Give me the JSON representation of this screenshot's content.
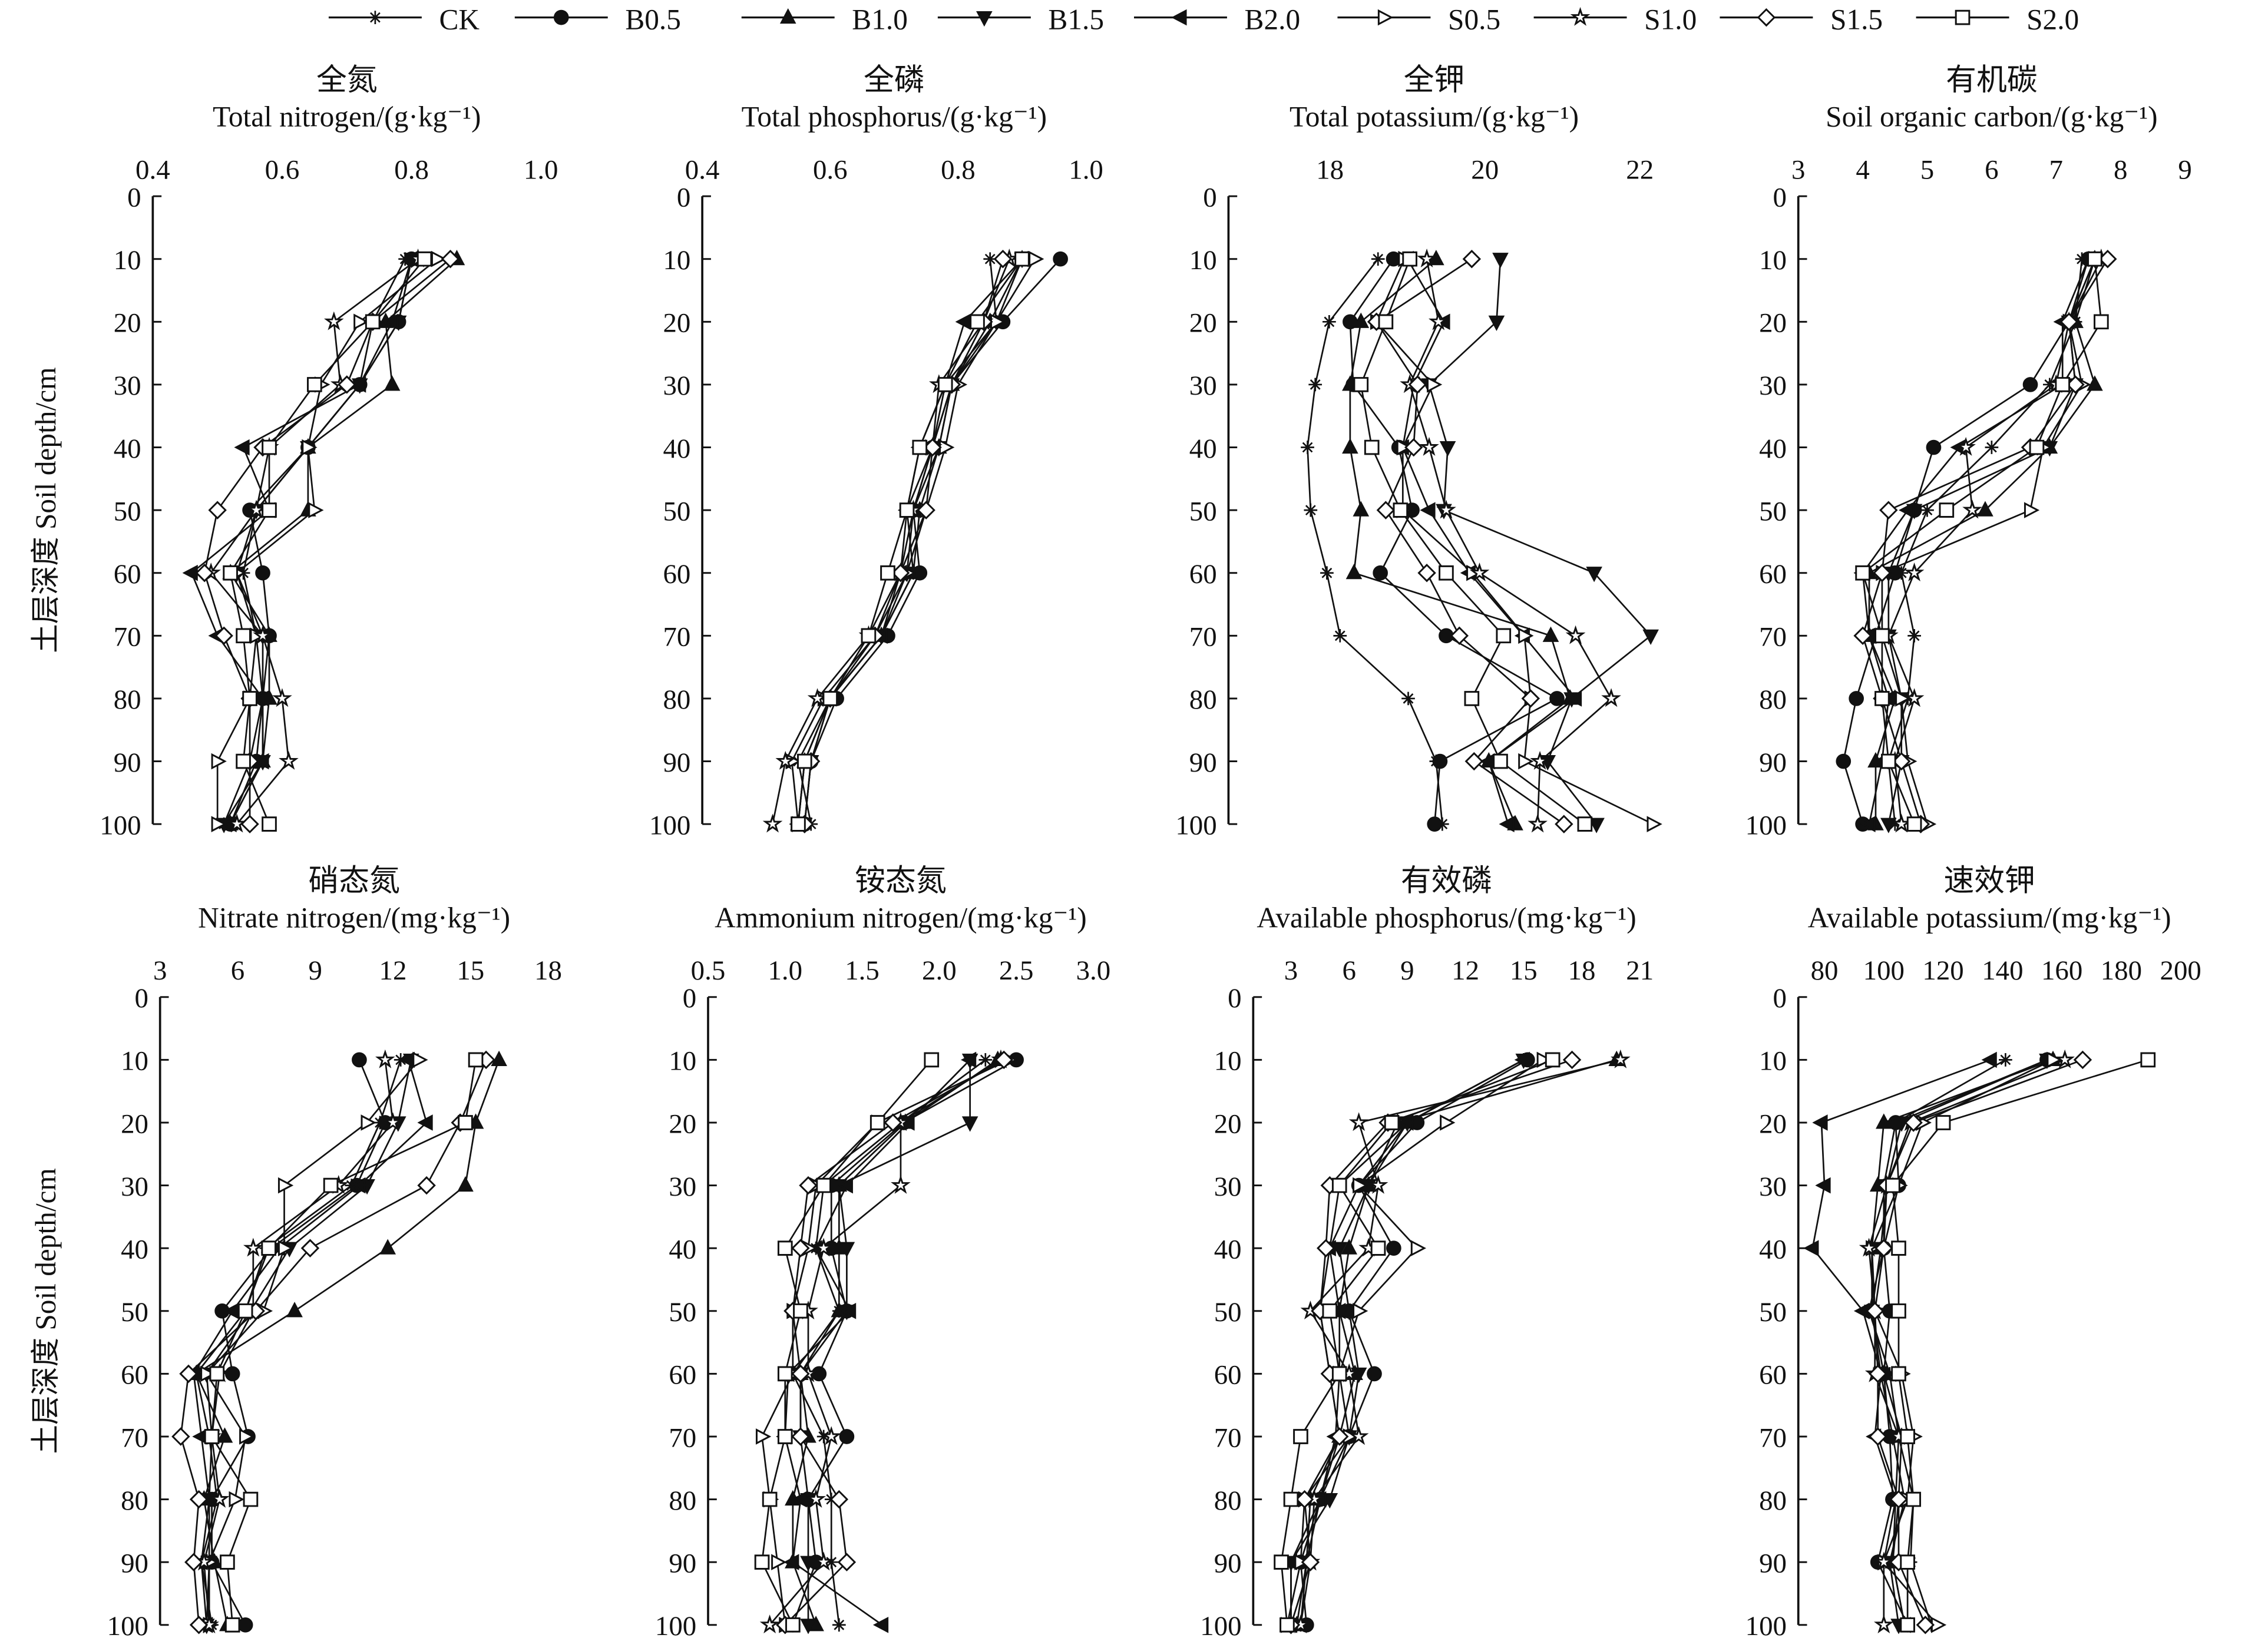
{
  "chart_data": {
    "type": "line",
    "y_label": "土层深度  Soil depth/cm",
    "depths": [
      10,
      20,
      30,
      40,
      50,
      60,
      70,
      80,
      90,
      100
    ],
    "y_ticks": [
      0,
      10,
      20,
      30,
      40,
      50,
      60,
      70,
      80,
      90,
      100
    ],
    "ylim": [
      0,
      100
    ],
    "series_names": [
      "CK",
      "B0.5",
      "B1.0",
      "B1.5",
      "B2.0",
      "S0.5",
      "S1.0",
      "S1.5",
      "S2.0"
    ],
    "markers": [
      "asterisk",
      "filled-circle",
      "filled-triangle-up",
      "filled-triangle-down",
      "filled-triangle-left",
      "open-triangle-right",
      "open-star",
      "open-diamond",
      "open-square"
    ],
    "color": "#111111",
    "legend_position": "top",
    "panels": [
      {
        "title_cn": "全氮",
        "title_en": "Total nitrogen/(g·kg⁻¹)",
        "xlim": [
          0.4,
          1.0
        ],
        "xticks": [
          "0.4",
          "0.6",
          "0.8",
          "1.0"
        ],
        "xtick_values": [
          0.4,
          0.6,
          0.8,
          1.0
        ],
        "values": [
          [
            0.79,
            0.74,
            0.72,
            0.64,
            0.56,
            0.54,
            0.56,
            0.57,
            0.55,
            0.51
          ],
          [
            0.8,
            0.78,
            0.72,
            0.64,
            0.55,
            0.57,
            0.58,
            0.57,
            0.56,
            0.52
          ],
          [
            0.87,
            0.76,
            0.77,
            0.64,
            0.64,
            0.52,
            0.58,
            0.58,
            0.57,
            0.52
          ],
          [
            0.8,
            0.78,
            0.72,
            0.64,
            0.56,
            0.53,
            0.57,
            0.57,
            0.57,
            0.51
          ],
          [
            0.8,
            0.77,
            0.72,
            0.54,
            0.58,
            0.46,
            0.5,
            0.57,
            0.57,
            0.52
          ],
          [
            0.84,
            0.72,
            0.66,
            0.64,
            0.65,
            0.53,
            0.56,
            0.55,
            0.5,
            0.5
          ],
          [
            0.81,
            0.68,
            0.69,
            0.58,
            0.56,
            0.49,
            0.57,
            0.6,
            0.61,
            0.53
          ],
          [
            0.86,
            0.74,
            0.7,
            0.57,
            0.5,
            0.48,
            0.51,
            0.55,
            0.55,
            0.55
          ],
          [
            0.82,
            0.74,
            0.65,
            0.58,
            0.58,
            0.52,
            0.54,
            0.55,
            0.54,
            0.58
          ]
        ]
      },
      {
        "title_cn": "全磷",
        "title_en": "Total phosphorus/(g·kg⁻¹)",
        "xlim": [
          0.4,
          1.0
        ],
        "xticks": [
          "0.4",
          "0.6",
          "0.8",
          "1.0"
        ],
        "xtick_values": [
          0.4,
          0.6,
          0.8,
          1.0
        ],
        "values": [
          [
            0.85,
            0.86,
            0.78,
            0.76,
            0.72,
            0.73,
            0.68,
            0.6,
            0.55,
            0.57
          ],
          [
            0.96,
            0.87,
            0.79,
            0.76,
            0.73,
            0.74,
            0.69,
            0.61,
            0.57,
            0.56
          ],
          [
            0.9,
            0.85,
            0.79,
            0.77,
            0.74,
            0.73,
            0.68,
            0.6,
            0.56,
            0.55
          ],
          [
            0.9,
            0.86,
            0.79,
            0.77,
            0.73,
            0.72,
            0.68,
            0.6,
            0.57,
            0.56
          ],
          [
            0.9,
            0.81,
            0.78,
            0.74,
            0.72,
            0.71,
            0.68,
            0.6,
            0.56,
            0.55
          ],
          [
            0.92,
            0.86,
            0.8,
            0.78,
            0.75,
            0.72,
            0.67,
            0.59,
            0.54,
            0.55
          ],
          [
            0.88,
            0.84,
            0.77,
            0.76,
            0.73,
            0.71,
            0.66,
            0.58,
            0.53,
            0.51
          ],
          [
            0.87,
            0.84,
            0.79,
            0.76,
            0.75,
            0.71,
            0.67,
            0.6,
            0.57,
            0.56
          ],
          [
            0.9,
            0.83,
            0.78,
            0.74,
            0.72,
            0.69,
            0.66,
            0.6,
            0.56,
            0.55
          ]
        ]
      },
      {
        "title_cn": "全钾",
        "title_en": "Total potassium/(g·kg⁻¹)",
        "xlim": [
          16.69,
          22.0
        ],
        "xticks": [
          "18",
          "20",
          "22"
        ],
        "xtick_values": [
          18,
          20,
          22
        ],
        "values": [
          [
            18.62,
            17.99,
            17.81,
            17.71,
            17.75,
            17.96,
            18.13,
            19.01,
            19.37,
            19.45
          ],
          [
            18.82,
            18.26,
            18.3,
            18.89,
            19.06,
            18.65,
            19.5,
            20.93,
            19.42,
            19.35
          ],
          [
            19.37,
            18.4,
            18.26,
            18.26,
            18.4,
            18.31,
            20.85,
            21.1,
            20.05,
            20.39
          ],
          [
            20.2,
            20.15,
            19.28,
            19.52,
            19.47,
            21.41,
            22.14,
            21.12,
            20.81,
            21.44
          ],
          [
            19.0,
            19.47,
            19.08,
            18.94,
            19.28,
            19.8,
            20.5,
            21.17,
            20.05,
            20.3
          ],
          [
            18.96,
            18.6,
            19.33,
            18.94,
            18.94,
            19.84,
            20.51,
            20.59,
            20.51,
            22.17
          ],
          [
            19.25,
            19.4,
            19.03,
            19.28,
            19.5,
            19.93,
            21.17,
            21.63,
            20.71,
            20.68
          ],
          [
            19.83,
            18.6,
            19.13,
            19.08,
            18.72,
            19.25,
            19.67,
            20.59,
            19.86,
            21.02
          ],
          [
            19.03,
            18.72,
            18.4,
            18.54,
            18.91,
            19.5,
            20.24,
            19.83,
            20.2,
            21.29
          ]
        ]
      },
      {
        "title_cn": "有机碳",
        "title_en": "Soil organic carbon/(g·kg⁻¹)",
        "xlim": [
          3,
          9
        ],
        "xticks": [
          "3",
          "4",
          "5",
          "6",
          "7",
          "8",
          "9"
        ],
        "xtick_values": [
          3,
          4,
          5,
          6,
          7,
          8,
          9
        ],
        "values": [
          [
            7.4,
            7.3,
            6.9,
            6.0,
            5.0,
            4.6,
            4.8,
            4.7,
            4.4,
            4.5
          ],
          [
            7.5,
            7.2,
            6.6,
            5.1,
            4.8,
            4.5,
            4.2,
            3.9,
            3.7,
            4.0
          ],
          [
            7.6,
            7.3,
            7.6,
            6.9,
            5.9,
            4.1,
            4.1,
            4.5,
            4.2,
            4.2
          ],
          [
            7.6,
            7.2,
            7.3,
            6.9,
            4.8,
            4.4,
            4.4,
            4.6,
            4.6,
            4.4
          ],
          [
            7.5,
            7.1,
            7.1,
            5.5,
            4.7,
            4.0,
            4.1,
            4.4,
            4.3,
            4.1
          ],
          [
            7.6,
            7.2,
            7.4,
            6.8,
            6.6,
            4.3,
            4.3,
            4.6,
            4.7,
            5.0
          ],
          [
            7.7,
            7.2,
            7.0,
            5.6,
            5.7,
            4.8,
            4.4,
            4.8,
            4.5,
            4.6
          ],
          [
            7.8,
            7.2,
            7.3,
            6.6,
            4.4,
            4.3,
            4.0,
            4.3,
            4.6,
            4.9
          ],
          [
            7.6,
            7.7,
            7.1,
            6.7,
            5.3,
            4.0,
            4.3,
            4.3,
            4.4,
            4.8
          ]
        ]
      },
      {
        "title_cn": "硝态氮",
        "title_en": "Nitrate nitrogen/(mg·kg⁻¹)",
        "xlim": [
          3,
          18
        ],
        "xticks": [
          "3",
          "6",
          "9",
          "12",
          "15",
          "18"
        ],
        "xtick_values": [
          3,
          6,
          9,
          12,
          15,
          18
        ],
        "values": [
          [
            12.3,
            11.5,
            10.4,
            7.1,
            6.3,
            4.4,
            4.9,
            5.2,
            4.6,
            5.0
          ],
          [
            10.7,
            11.7,
            10.6,
            7.3,
            5.4,
            5.8,
            6.4,
            5.0,
            5.0,
            6.3
          ],
          [
            16.1,
            15.2,
            14.8,
            11.8,
            8.2,
            4.4,
            5.5,
            4.7,
            5.1,
            5.6
          ],
          [
            12.7,
            12.2,
            11.0,
            8.0,
            6.5,
            4.8,
            5.0,
            4.9,
            4.9,
            4.8
          ],
          [
            12.6,
            13.3,
            10.7,
            7.6,
            5.8,
            4.3,
            4.6,
            4.9,
            4.6,
            4.8
          ],
          [
            13.0,
            11.0,
            7.8,
            7.8,
            7.0,
            4.8,
            6.3,
            5.9,
            4.9,
            4.9
          ],
          [
            11.7,
            12.0,
            9.9,
            6.6,
            6.6,
            5.3,
            5.0,
            5.3,
            4.7,
            4.9
          ],
          [
            15.6,
            14.6,
            13.3,
            8.8,
            6.7,
            4.1,
            3.8,
            4.5,
            4.3,
            4.5
          ],
          [
            15.2,
            14.8,
            9.6,
            7.2,
            6.3,
            5.2,
            5.0,
            6.5,
            5.6,
            5.8
          ]
        ]
      },
      {
        "title_cn": "铵态氮",
        "title_en": "Ammonium nitrogen/(mg·kg⁻¹)",
        "xlim": [
          0.5,
          3.0
        ],
        "xticks": [
          "0.5",
          "1.0",
          "1.5",
          "2.0",
          "2.5",
          "3.0"
        ],
        "xtick_values": [
          0.5,
          1.0,
          1.5,
          2.0,
          2.5,
          3.0
        ],
        "values": [
          [
            2.3,
            1.75,
            1.25,
            1.2,
            1.35,
            1.05,
            1.25,
            1.3,
            1.3,
            1.35
          ],
          [
            2.5,
            1.77,
            1.3,
            1.3,
            1.4,
            1.22,
            1.4,
            1.15,
            1.2,
            1.05
          ],
          [
            2.38,
            1.78,
            1.35,
            1.35,
            1.35,
            1.1,
            1.15,
            1.05,
            1.05,
            1.2
          ],
          [
            2.2,
            2.2,
            1.35,
            1.4,
            1.4,
            1.1,
            1.1,
            1.15,
            1.15,
            1.15
          ],
          [
            2.2,
            1.8,
            1.4,
            1.2,
            1.42,
            1.02,
            1.0,
            1.1,
            1.05,
            1.63
          ],
          [
            2.45,
            1.6,
            1.2,
            1.15,
            1.05,
            1.05,
            0.85,
            0.9,
            0.95,
            1.0
          ],
          [
            2.4,
            1.75,
            1.75,
            1.25,
            1.15,
            1.15,
            1.3,
            1.2,
            1.25,
            0.9
          ],
          [
            2.42,
            1.7,
            1.15,
            1.1,
            1.05,
            1.1,
            1.1,
            1.35,
            1.4,
            1.0
          ],
          [
            1.95,
            1.6,
            1.25,
            1.0,
            1.1,
            1.0,
            1.0,
            0.9,
            0.85,
            1.05
          ]
        ]
      },
      {
        "title_cn": "有效磷",
        "title_en": "Available phosphorus/(mg·kg⁻¹)",
        "xlim": [
          1.05,
          21
        ],
        "xticks": [
          "3",
          "6",
          "9",
          "12",
          "15",
          "18",
          "21"
        ],
        "xtick_values": [
          3,
          6,
          9,
          12,
          15,
          18,
          21
        ],
        "values": [
          [
            15.0,
            9.0,
            6.5,
            5.0,
            4.5,
            5.0,
            5.5,
            4.5,
            3.8,
            3.5
          ],
          [
            15.2,
            9.5,
            6.5,
            8.3,
            6.0,
            7.3,
            6.0,
            4.5,
            3.5,
            3.8
          ],
          [
            19.8,
            8.5,
            7.0,
            6.0,
            5.5,
            6.3,
            5.5,
            4.0,
            3.8,
            3.3
          ],
          [
            15.0,
            9.0,
            7.0,
            5.5,
            6.0,
            6.5,
            6.0,
            5.0,
            3.0,
            3.0
          ],
          [
            15.0,
            9.0,
            5.5,
            5.0,
            5.5,
            5.5,
            5.3,
            4.5,
            3.0,
            3.0
          ],
          [
            16.0,
            11.0,
            6.5,
            9.5,
            6.5,
            5.5,
            6.0,
            3.7,
            3.5,
            2.8
          ],
          [
            20.0,
            6.5,
            7.5,
            7.0,
            4.0,
            6.0,
            6.5,
            4.2,
            4.0,
            3.5
          ],
          [
            17.5,
            8.0,
            5.0,
            4.8,
            4.5,
            5.0,
            5.5,
            3.7,
            4.0,
            3.0
          ],
          [
            16.5,
            8.2,
            5.5,
            7.5,
            5.0,
            5.5,
            3.5,
            3.0,
            2.5,
            2.8
          ]
        ]
      },
      {
        "title_cn": "速效钾",
        "title_en": "Available potassium/(mg·kg⁻¹)",
        "xlim": [
          71.2,
          200
        ],
        "xticks": [
          "80",
          "100",
          "120",
          "140",
          "160",
          "180",
          "200"
        ],
        "xtick_values": [
          80,
          100,
          120,
          140,
          160,
          180,
          200
        ],
        "values": [
          [
            141,
            104,
            100,
            100,
            95,
            102,
            105,
            110,
            109,
            116
          ],
          [
            155,
            104,
            105,
            100,
            102,
            100,
            102,
            103,
            98,
            108
          ],
          [
            157,
            100,
            98,
            96,
            96,
            100,
            106,
            105,
            103,
            107
          ],
          [
            155,
            106,
            101,
            99,
            96,
            99,
            103,
            107,
            102,
            105
          ],
          [
            136,
            79,
            80,
            76,
            93,
            99,
            97,
            104,
            103,
            107
          ],
          [
            157,
            113,
            105,
            96,
            97,
            106,
            110,
            108,
            100,
            118
          ],
          [
            161,
            109,
            101,
            95,
            97,
            97,
            105,
            104,
            100,
            100
          ],
          [
            167,
            110,
            101,
            100,
            97,
            98,
            98,
            105,
            105,
            114
          ],
          [
            189,
            120,
            103,
            105,
            105,
            105,
            108,
            110,
            108,
            108
          ]
        ]
      }
    ]
  }
}
